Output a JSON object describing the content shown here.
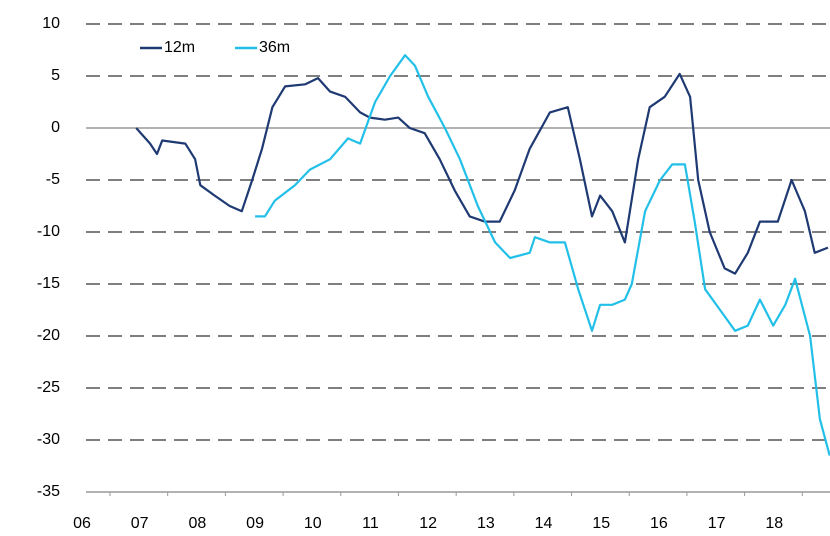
{
  "chart_data": {
    "type": "line",
    "xlim": [
      6,
      19
    ],
    "xticks": [
      {
        "value": 6,
        "label": "06"
      },
      {
        "value": 7,
        "label": "07"
      },
      {
        "value": 8,
        "label": "08"
      },
      {
        "value": 9,
        "label": "09"
      },
      10,
      11,
      12,
      13,
      14,
      15,
      16,
      17,
      18
    ],
    "ylim": [
      -35,
      10
    ],
    "yticks": [
      -35,
      -30,
      -25,
      -20,
      -15,
      -10,
      -5,
      0,
      5,
      10
    ],
    "grid": true,
    "legend": "top-left",
    "series": [
      {
        "name": "12m",
        "color": "#1f3a73",
        "x": [
          6.94,
          7.18,
          7.3,
          7.39,
          7.79,
          7.96,
          8.05,
          8.3,
          8.56,
          8.77,
          8.95,
          9.12,
          9.3,
          9.52,
          9.87,
          10.09,
          10.3,
          10.56,
          10.82,
          10.99,
          11.25,
          11.48,
          11.68,
          11.94,
          12.2,
          12.46,
          12.72,
          12.98,
          13.24,
          13.5,
          13.76,
          14.11,
          14.42,
          14.63,
          14.84,
          14.98,
          15.19,
          15.41,
          15.64,
          15.84,
          16.1,
          16.36,
          16.54,
          16.68,
          16.88,
          17.14,
          17.32,
          17.54,
          17.75,
          18.06,
          18.3,
          18.53,
          18.7,
          18.93
        ],
        "values": [
          0,
          -1.5,
          -2.5,
          -1.2,
          -1.5,
          -3,
          -5.5,
          -6.5,
          -7.5,
          -8,
          -5,
          -2,
          2,
          4,
          4.2,
          4.8,
          3.5,
          3,
          1.5,
          1,
          0.8,
          1,
          0,
          -0.5,
          -3,
          -6,
          -8.5,
          -9,
          -9,
          -6,
          -2,
          1.5,
          2,
          -3,
          -8.5,
          -6.5,
          -8,
          -11,
          -3,
          2,
          3,
          5.2,
          3,
          -5,
          -10,
          -13.5,
          -14,
          -12,
          -9,
          -9,
          -5,
          -8,
          -12,
          -11.5
        ]
      },
      {
        "name": "36m",
        "color": "#22c0e8",
        "x": [
          9.0,
          9.17,
          9.34,
          9.69,
          9.95,
          10.3,
          10.61,
          10.82,
          11.08,
          11.34,
          11.6,
          11.77,
          12.0,
          12.29,
          12.55,
          12.86,
          13.16,
          13.42,
          13.76,
          13.85,
          14.11,
          14.37,
          14.6,
          14.84,
          14.98,
          15.19,
          15.41,
          15.53,
          15.76,
          16.02,
          16.23,
          16.45,
          16.62,
          16.8,
          17.06,
          17.32,
          17.54,
          17.75,
          17.98,
          18.19,
          18.36,
          18.62,
          18.79,
          18.96
        ],
        "values": [
          -8.5,
          -8.5,
          -7,
          -5.5,
          -4,
          -3,
          -1,
          -1.5,
          2.5,
          5,
          7,
          6,
          3,
          0,
          -3,
          -7.5,
          -11,
          -12.5,
          -12,
          -10.5,
          -11,
          -11,
          -15.5,
          -19.5,
          -17,
          -17,
          -16.5,
          -15,
          -8,
          -5,
          -3.5,
          -3.5,
          -9,
          -15.5,
          -17.5,
          -19.5,
          -19,
          -16.5,
          -19,
          -17,
          -14.5,
          -20,
          -28,
          -31.5
        ]
      }
    ]
  }
}
